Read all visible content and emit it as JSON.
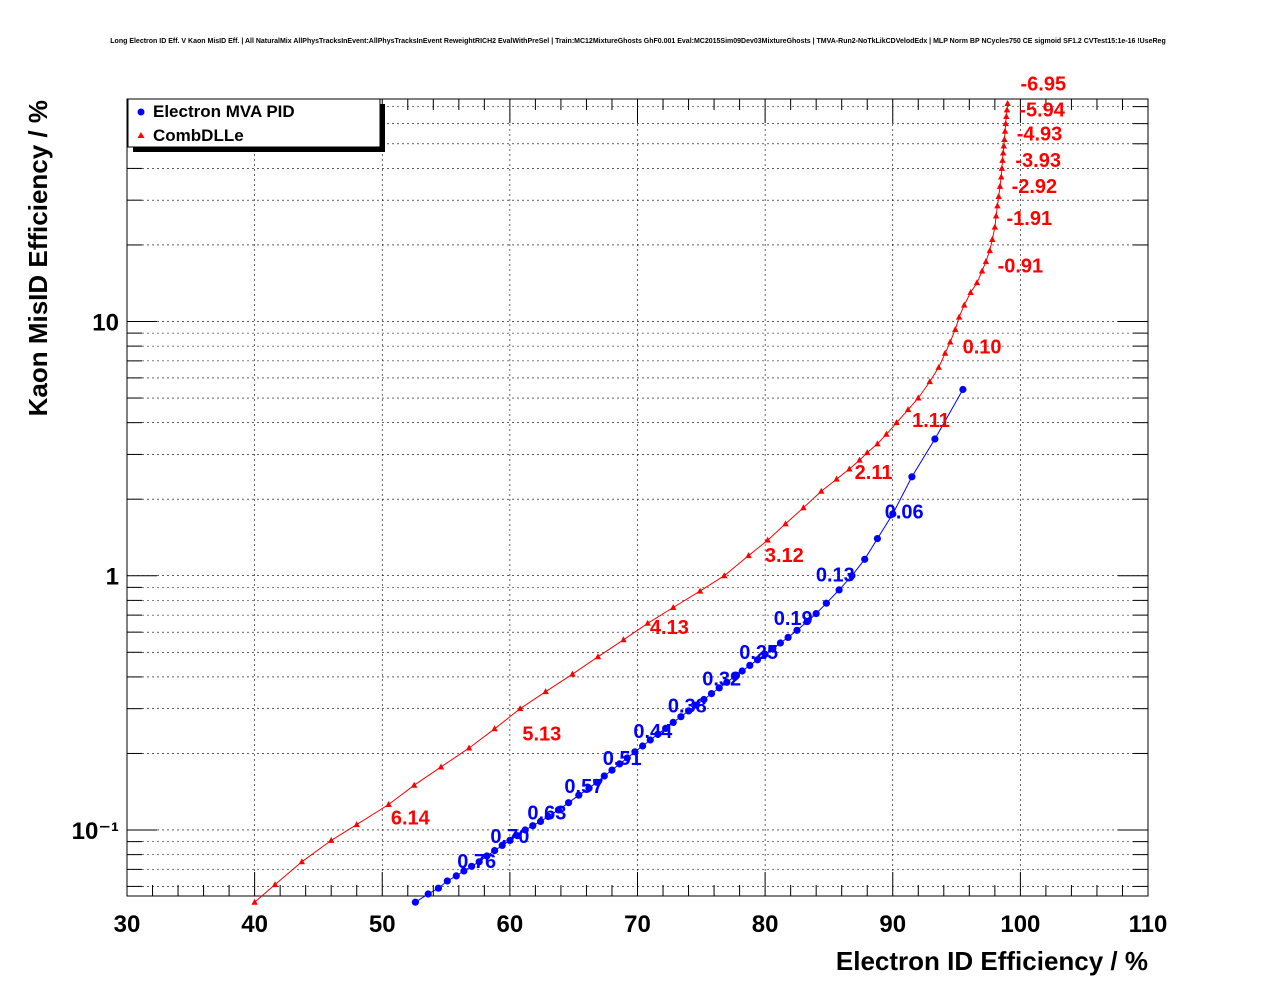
{
  "chart_data": {
    "type": "scatter",
    "title": "Long Electron ID Eff. V Kaon MisID Eff. | All NaturalMix AllPhysTracksInEvent:AllPhysTracksInEvent ReweightRICH2 EvalWithPreSel | Train:MC12MixtureGhosts GhF0.001 Eval:MC2015Sim09Dev03MixtureGhosts | TMVA-Run2-NoTkLikCDVelodEdx | MLP Norm BP NCycles750 CE sigmoid SF1.2 CVTest15:1e-16 !UseReg",
    "xlabel": "Electron ID Efficiency / %",
    "ylabel": "Kaon MisID Efficiency / %",
    "xlim": [
      30,
      110
    ],
    "ylim": [
      0.055,
      75
    ],
    "yscale": "log",
    "grid": true,
    "legend_position": "top-left",
    "x_ticks": [
      30,
      40,
      50,
      60,
      70,
      80,
      90,
      100,
      110
    ],
    "x_tick_labels": [
      "30",
      "40",
      "50",
      "60",
      "70",
      "80",
      "90",
      "100",
      "110"
    ],
    "y_ticks": [
      0.1,
      1,
      10
    ],
    "y_tick_labels": [
      "10⁻¹",
      "1",
      "10"
    ],
    "series": [
      {
        "name": "Electron MVA PID",
        "color": "#0000ff",
        "marker": "circle",
        "x": [
          52.6,
          53.6,
          54.4,
          55.1,
          55.8,
          56.4,
          57.0,
          57.6,
          58.2,
          58.8,
          59.4,
          60.0,
          60.6,
          61.2,
          61.8,
          62.4,
          63.0,
          63.8,
          64.6,
          65.4,
          66.2,
          66.8,
          67.4,
          68.0,
          68.6,
          69.2,
          69.8,
          70.4,
          71.0,
          71.6,
          72.2,
          72.8,
          73.4,
          74.0,
          74.6,
          75.2,
          75.8,
          76.4,
          77.0,
          77.6,
          78.2,
          78.8,
          79.4,
          80.0,
          80.6,
          81.2,
          81.8,
          82.5,
          83.3,
          84.0,
          84.8,
          85.8,
          86.8,
          87.8,
          88.8,
          90.0,
          91.5,
          93.3,
          95.5
        ],
        "y": [
          0.052,
          0.056,
          0.059,
          0.063,
          0.066,
          0.069,
          0.072,
          0.075,
          0.079,
          0.083,
          0.087,
          0.091,
          0.095,
          0.1,
          0.104,
          0.108,
          0.113,
          0.12,
          0.128,
          0.137,
          0.146,
          0.154,
          0.163,
          0.172,
          0.182,
          0.192,
          0.203,
          0.214,
          0.226,
          0.238,
          0.251,
          0.265,
          0.279,
          0.294,
          0.31,
          0.326,
          0.344,
          0.362,
          0.381,
          0.401,
          0.422,
          0.444,
          0.467,
          0.491,
          0.516,
          0.544,
          0.572,
          0.61,
          0.66,
          0.71,
          0.78,
          0.88,
          1.0,
          1.16,
          1.4,
          1.75,
          2.45,
          3.45,
          5.4
        ],
        "annotations": [
          {
            "text": "0.76",
            "x": 57.4,
            "y": 0.071
          },
          {
            "text": "0.70",
            "x": 60.0,
            "y": 0.089
          },
          {
            "text": "0.63",
            "x": 62.9,
            "y": 0.11
          },
          {
            "text": "0.57",
            "x": 65.8,
            "y": 0.14
          },
          {
            "text": "0.51",
            "x": 68.8,
            "y": 0.18
          },
          {
            "text": "0.44",
            "x": 71.2,
            "y": 0.23
          },
          {
            "text": "0.38",
            "x": 73.9,
            "y": 0.29
          },
          {
            "text": "0.32",
            "x": 76.6,
            "y": 0.37
          },
          {
            "text": "0.25",
            "x": 79.5,
            "y": 0.47
          },
          {
            "text": "0.19",
            "x": 82.2,
            "y": 0.64
          },
          {
            "text": "0.13",
            "x": 85.5,
            "y": 0.95
          },
          {
            "text": "0.06",
            "x": 90.9,
            "y": 1.68
          }
        ]
      },
      {
        "name": "CombDLLe",
        "color": "#ff0000",
        "marker": "triangle",
        "x": [
          40.0,
          41.6,
          43.7,
          46.0,
          48.0,
          50.5,
          52.5,
          54.6,
          56.8,
          58.8,
          60.8,
          62.8,
          64.9,
          66.9,
          68.9,
          70.8,
          72.8,
          74.9,
          76.8,
          78.7,
          80.2,
          81.6,
          83.0,
          84.4,
          85.6,
          86.6,
          87.4,
          88.0,
          88.8,
          89.5,
          90.3,
          91.2,
          92.0,
          92.9,
          93.6,
          94.1,
          94.5,
          94.9,
          95.2,
          95.6,
          96.1,
          96.6,
          97.0,
          97.3,
          97.6,
          97.8,
          98.0,
          98.1,
          98.2,
          98.3,
          98.4,
          98.5,
          98.55,
          98.6,
          98.65,
          98.7,
          98.75,
          98.8,
          98.85,
          98.9,
          98.95,
          99.0
        ],
        "y": [
          0.052,
          0.061,
          0.075,
          0.091,
          0.105,
          0.126,
          0.15,
          0.177,
          0.21,
          0.25,
          0.3,
          0.35,
          0.41,
          0.48,
          0.56,
          0.65,
          0.75,
          0.87,
          1.0,
          1.2,
          1.38,
          1.6,
          1.85,
          2.15,
          2.4,
          2.63,
          2.85,
          3.05,
          3.3,
          3.6,
          4.0,
          4.5,
          5.0,
          5.8,
          6.6,
          7.5,
          8.3,
          9.3,
          10.4,
          11.6,
          13.0,
          14.2,
          15.8,
          17.2,
          19.0,
          21.0,
          23.5,
          26.0,
          28.5,
          31.0,
          34.0,
          37.0,
          40.0,
          43.0,
          46.0,
          49.0,
          52.0,
          56.0,
          60.0,
          64.0,
          68.0,
          72.0
        ],
        "annotations": [
          {
            "text": "6.14",
            "x": 52.2,
            "y": 0.105
          },
          {
            "text": "5.13",
            "x": 62.5,
            "y": 0.225
          },
          {
            "text": "4.13",
            "x": 72.5,
            "y": 0.59
          },
          {
            "text": "3.12",
            "x": 81.5,
            "y": 1.13
          },
          {
            "text": "2.11",
            "x": 88.5,
            "y": 2.4
          },
          {
            "text": "1.11",
            "x": 93.0,
            "y": 3.85
          },
          {
            "text": "0.10",
            "x": 97.0,
            "y": 7.5
          },
          {
            "text": "-0.91",
            "x": 100.0,
            "y": 15.6
          },
          {
            "text": "-1.91",
            "x": 100.7,
            "y": 24.0
          },
          {
            "text": "-2.92",
            "x": 101.1,
            "y": 32.0
          },
          {
            "text": "-3.93",
            "x": 101.4,
            "y": 40.5
          },
          {
            "text": "-4.93",
            "x": 101.5,
            "y": 51.5
          },
          {
            "text": "-5.94",
            "x": 101.7,
            "y": 64.0
          },
          {
            "text": "-6.95",
            "x": 101.8,
            "y": 81.0
          }
        ]
      }
    ]
  }
}
